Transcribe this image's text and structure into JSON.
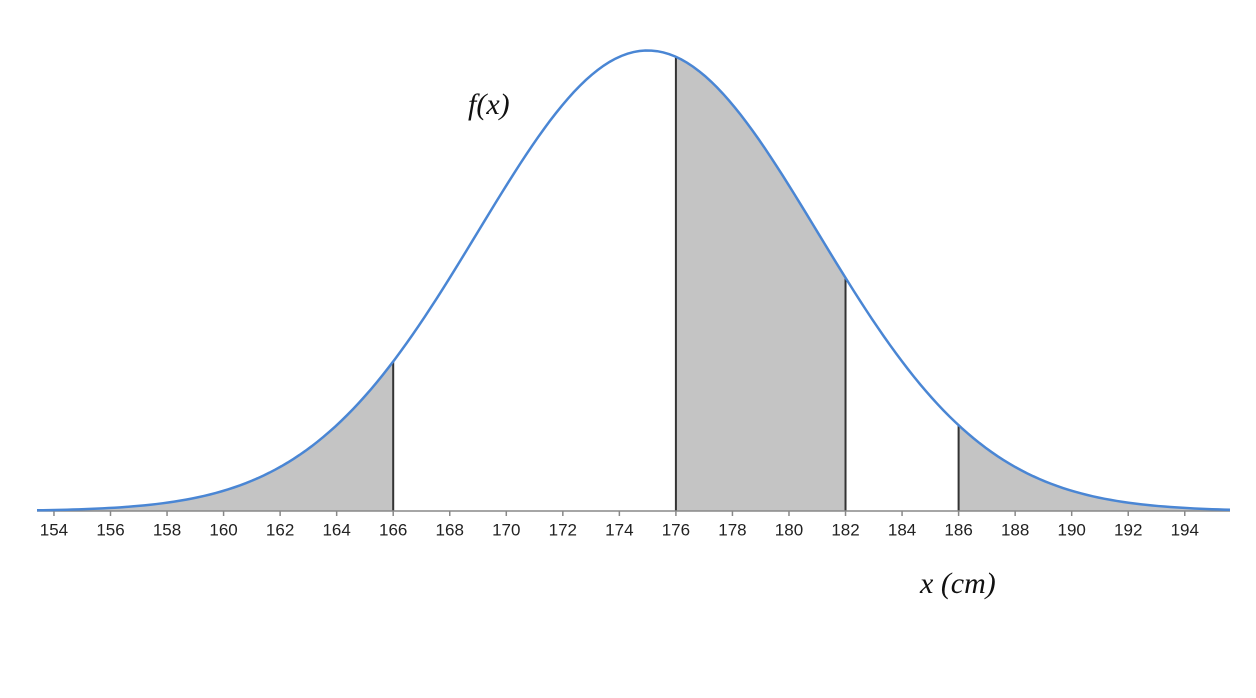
{
  "chart_data": {
    "type": "normal-density",
    "mean": 175,
    "sd": 6,
    "xlim": [
      153.4,
      195.6
    ],
    "ylim": [
      0,
      0.068
    ],
    "xticks": [
      154,
      156,
      158,
      160,
      162,
      164,
      166,
      168,
      170,
      172,
      174,
      176,
      178,
      180,
      182,
      184,
      186,
      188,
      190,
      192,
      194
    ],
    "shaded_intervals": [
      [
        153.4,
        166
      ],
      [
        176,
        182
      ],
      [
        186,
        195.6
      ]
    ],
    "curve_label": "f(x)",
    "x_label": "x (cm)",
    "color": "#4a86d4",
    "shade_color": "#c4c4c4"
  }
}
